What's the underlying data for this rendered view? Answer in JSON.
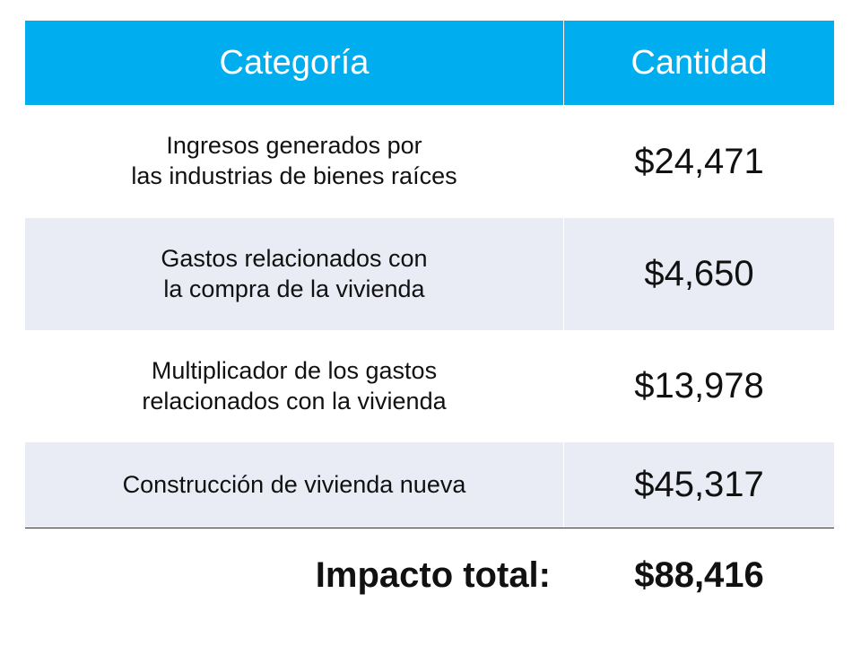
{
  "table": {
    "header": [
      "Categoría",
      "Cantidad"
    ],
    "rows": [
      [
        [
          "Ingresos generados por",
          "las industrias de bienes raíces"
        ],
        "$24,471"
      ],
      [
        [
          "Gastos relacionados con",
          "la compra de la vivienda"
        ],
        "$4,650"
      ],
      [
        [
          "Multiplicador de los gastos",
          "relacionados con la vivienda"
        ],
        "$13,978"
      ],
      [
        [
          "Construcción de vivienda nueva"
        ],
        "$45,317"
      ]
    ],
    "total": [
      "Impacto total:",
      "$88,416"
    ]
  }
}
